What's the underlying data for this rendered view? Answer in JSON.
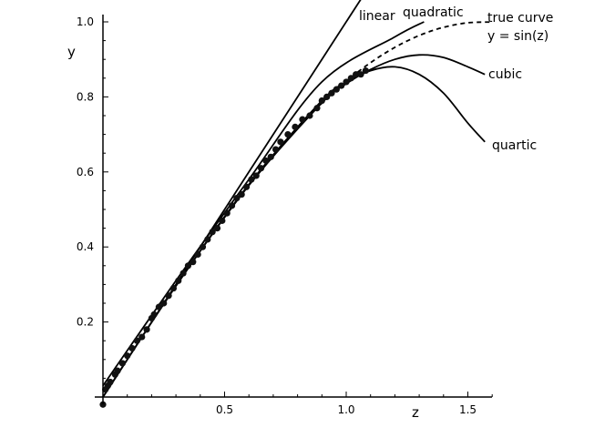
{
  "chart_data": {
    "type": "line",
    "title": "",
    "xlabel": "z",
    "ylabel": "y",
    "xlim": [
      0,
      1.6
    ],
    "ylim": [
      0,
      1.0
    ],
    "x_ticks": [
      {
        "value": 0,
        "label": ""
      },
      {
        "value": 0.5,
        "label": "0.5"
      },
      {
        "value": 1.0,
        "label": "1.0"
      },
      {
        "value": 1.5,
        "label": "1.5"
      }
    ],
    "y_ticks": [
      {
        "value": 0.2,
        "label": "0.2"
      },
      {
        "value": 0.4,
        "label": "0.4"
      },
      {
        "value": 0.6,
        "label": "0.6"
      },
      {
        "value": 0.8,
        "label": "0.8"
      },
      {
        "value": 1.0,
        "label": "1.0"
      }
    ],
    "grid": false,
    "scatter": {
      "x": [
        0.0,
        0.01,
        0.02,
        0.03,
        0.05,
        0.06,
        0.08,
        0.1,
        0.12,
        0.14,
        0.16,
        0.18,
        0.2,
        0.21,
        0.23,
        0.25,
        0.27,
        0.29,
        0.31,
        0.33,
        0.35,
        0.37,
        0.39,
        0.41,
        0.43,
        0.45,
        0.47,
        0.49,
        0.51,
        0.53,
        0.55,
        0.57,
        0.59,
        0.61,
        0.63,
        0.65,
        0.67,
        0.69,
        0.71,
        0.73,
        0.76,
        0.79,
        0.82,
        0.85,
        0.88,
        0.9,
        0.92,
        0.94,
        0.96,
        0.98,
        1.0,
        1.02,
        1.04,
        1.06,
        1.08
      ],
      "y": [
        -0.02,
        0.02,
        0.03,
        0.04,
        0.06,
        0.07,
        0.09,
        0.11,
        0.13,
        0.15,
        0.16,
        0.18,
        0.21,
        0.22,
        0.24,
        0.25,
        0.27,
        0.29,
        0.31,
        0.33,
        0.35,
        0.36,
        0.38,
        0.4,
        0.42,
        0.44,
        0.45,
        0.47,
        0.49,
        0.51,
        0.53,
        0.54,
        0.56,
        0.58,
        0.59,
        0.61,
        0.63,
        0.64,
        0.66,
        0.68,
        0.7,
        0.72,
        0.74,
        0.75,
        0.77,
        0.79,
        0.8,
        0.81,
        0.82,
        0.83,
        0.84,
        0.85,
        0.86,
        0.86,
        0.87
      ]
    },
    "series": [
      {
        "name": "linear",
        "style": "solid",
        "x": [
          0,
          0.3,
          0.6,
          0.9,
          1.12
        ],
        "y": [
          0.0,
          0.3,
          0.6,
          0.9,
          1.12
        ]
      },
      {
        "name": "quadratic",
        "style": "solid",
        "x": [
          0,
          0.3,
          0.6,
          0.9,
          1.2,
          1.32
        ],
        "y": [
          0.03,
          0.31,
          0.58,
          0.84,
          0.96,
          1.0
        ]
      },
      {
        "name": "true curve\ny = sin(z)",
        "style": "dashed",
        "x": [
          0.8,
          0.9,
          1.0,
          1.1,
          1.2,
          1.3,
          1.4,
          1.5,
          1.6
        ],
        "y": [
          0.7174,
          0.7833,
          0.8415,
          0.8912,
          0.932,
          0.9636,
          0.9854,
          0.9975,
          0.9996
        ]
      },
      {
        "name": "cubic",
        "style": "solid",
        "x": [
          0,
          0.3,
          0.6,
          0.9,
          1.0,
          1.1,
          1.2,
          1.3,
          1.4,
          1.5,
          1.57
        ],
        "y": [
          0.0,
          0.296,
          0.564,
          0.784,
          0.835,
          0.873,
          0.9,
          0.912,
          0.905,
          0.88,
          0.86
        ]
      },
      {
        "name": "quartic",
        "style": "solid",
        "x": [
          0,
          0.3,
          0.6,
          0.9,
          1.0,
          1.1,
          1.2,
          1.3,
          1.4,
          1.5,
          1.57
        ],
        "y": [
          0.0,
          0.296,
          0.567,
          0.79,
          0.838,
          0.87,
          0.88,
          0.86,
          0.81,
          0.73,
          0.68
        ]
      }
    ],
    "curve_labels": [
      {
        "series": "linear",
        "text": "linear"
      },
      {
        "series": "quadratic",
        "text": "quadratic"
      },
      {
        "series": "true curve",
        "text": "true curve"
      },
      {
        "series": "true curve",
        "text": "y = sin(z)"
      },
      {
        "series": "cubic",
        "text": "cubic"
      },
      {
        "series": "quartic",
        "text": "quartic"
      }
    ]
  }
}
